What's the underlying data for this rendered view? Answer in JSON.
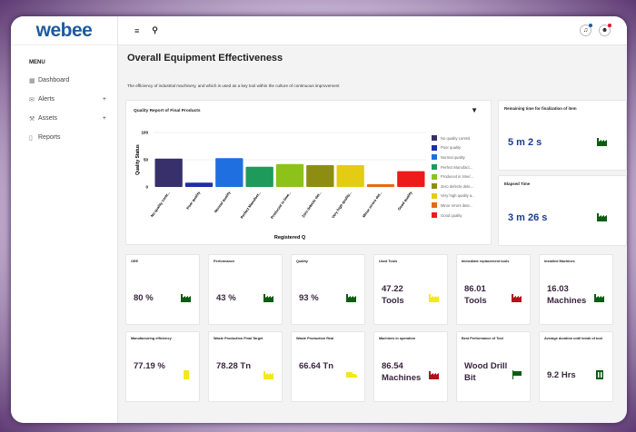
{
  "brand": "webee",
  "sidebar": {
    "menu_heading": "MENU",
    "items": [
      {
        "label": "Dashboard",
        "icon": "grid-icon"
      },
      {
        "label": "Alerts",
        "icon": "mail-icon",
        "expand": "+"
      },
      {
        "label": "Assets",
        "icon": "tool-icon",
        "expand": "+"
      },
      {
        "label": "Reports",
        "icon": "document-icon"
      }
    ]
  },
  "topbar": {
    "menu_icon": "≡",
    "search_icon": "⚲",
    "bell": "♫",
    "avatar": "☻"
  },
  "page": {
    "title": "Overall Equipment Effectiveness",
    "subtitle": "The efficiency of industrial machinery, and which is used as a key tool within the culture of continuous improvement"
  },
  "chart_data": {
    "type": "bar",
    "title": "Quality Report of Final Products",
    "xlabel": "Registered Q",
    "ylabel": "Quality Status",
    "ylim": [
      0,
      100
    ],
    "yticks": [
      0,
      50,
      100
    ],
    "categories": [
      "No quality contr...",
      "Poor quality",
      "Normal quality",
      "Perfect Manufact...",
      "Produced in time...",
      "Zero defects det...",
      "Very high quality...",
      "Minor errors det...",
      "Good quality"
    ],
    "values": [
      52,
      8,
      53,
      37,
      42,
      40,
      40,
      5,
      29
    ],
    "colors": [
      "#37306b",
      "#1e2ea8",
      "#1f6fe0",
      "#1e9a5a",
      "#8cc21a",
      "#8d8d12",
      "#e4cc14",
      "#e36a14",
      "#ee1b1b"
    ],
    "legend": [
      "No quality control",
      "Poor quality",
      "Normal quality",
      "Perfect Manufact...",
      "Produced in time/...",
      "Zero defects dete...",
      "Very high quality a...",
      "Minor errors dete...",
      "Good quality"
    ]
  },
  "side_cards": [
    {
      "title": "Remaining time for finalization of item",
      "value": "5 m 2 s"
    },
    {
      "title": "Elapsed Time",
      "value": "3 m 26 s"
    }
  ],
  "tiles": [
    {
      "title": "OEE",
      "value": "80 %",
      "icon": "factory-icon",
      "color": "#0d5c12"
    },
    {
      "title": "Performance",
      "value": "43 %",
      "icon": "factory-icon",
      "color": "#0d5c12"
    },
    {
      "title": "Quality",
      "value": "93 %",
      "icon": "factory-icon",
      "color": "#0d5c12"
    },
    {
      "title": "Used Tools",
      "value": "47.22 Tools",
      "icon": "factory-icon",
      "color": "#f2e81a"
    },
    {
      "title": "Immediate replacement tools",
      "value": "86.01 Tools",
      "icon": "factory-icon",
      "color": "#b0121a"
    },
    {
      "title": "Installed Machines",
      "value": "16.03 Machines",
      "icon": "factory-icon",
      "color": "#0d5c12"
    },
    {
      "title": "Manufacturing efficiency",
      "value": "77.19 %",
      "icon": "bin-icon",
      "color": "#f2e81a"
    },
    {
      "title": "Waste Production Final Target",
      "value": "78.28 Tn",
      "icon": "factory-icon",
      "color": "#f2e81a"
    },
    {
      "title": "Waste Production Real",
      "value": "66.64 Tn",
      "icon": "truck-icon",
      "color": "#f2e81a"
    },
    {
      "title": "Machines in operation",
      "value": "86.54 Machines",
      "icon": "factory-icon",
      "color": "#b0121a"
    },
    {
      "title": "Best Performance of Tool",
      "value": "Wood Drill Bit",
      "icon": "flag-icon",
      "color": "#0d5c12"
    },
    {
      "title": "Average duration until break of tool",
      "value": "9.2 Hrs",
      "icon": "building-icon",
      "color": "#0d5c12"
    }
  ]
}
